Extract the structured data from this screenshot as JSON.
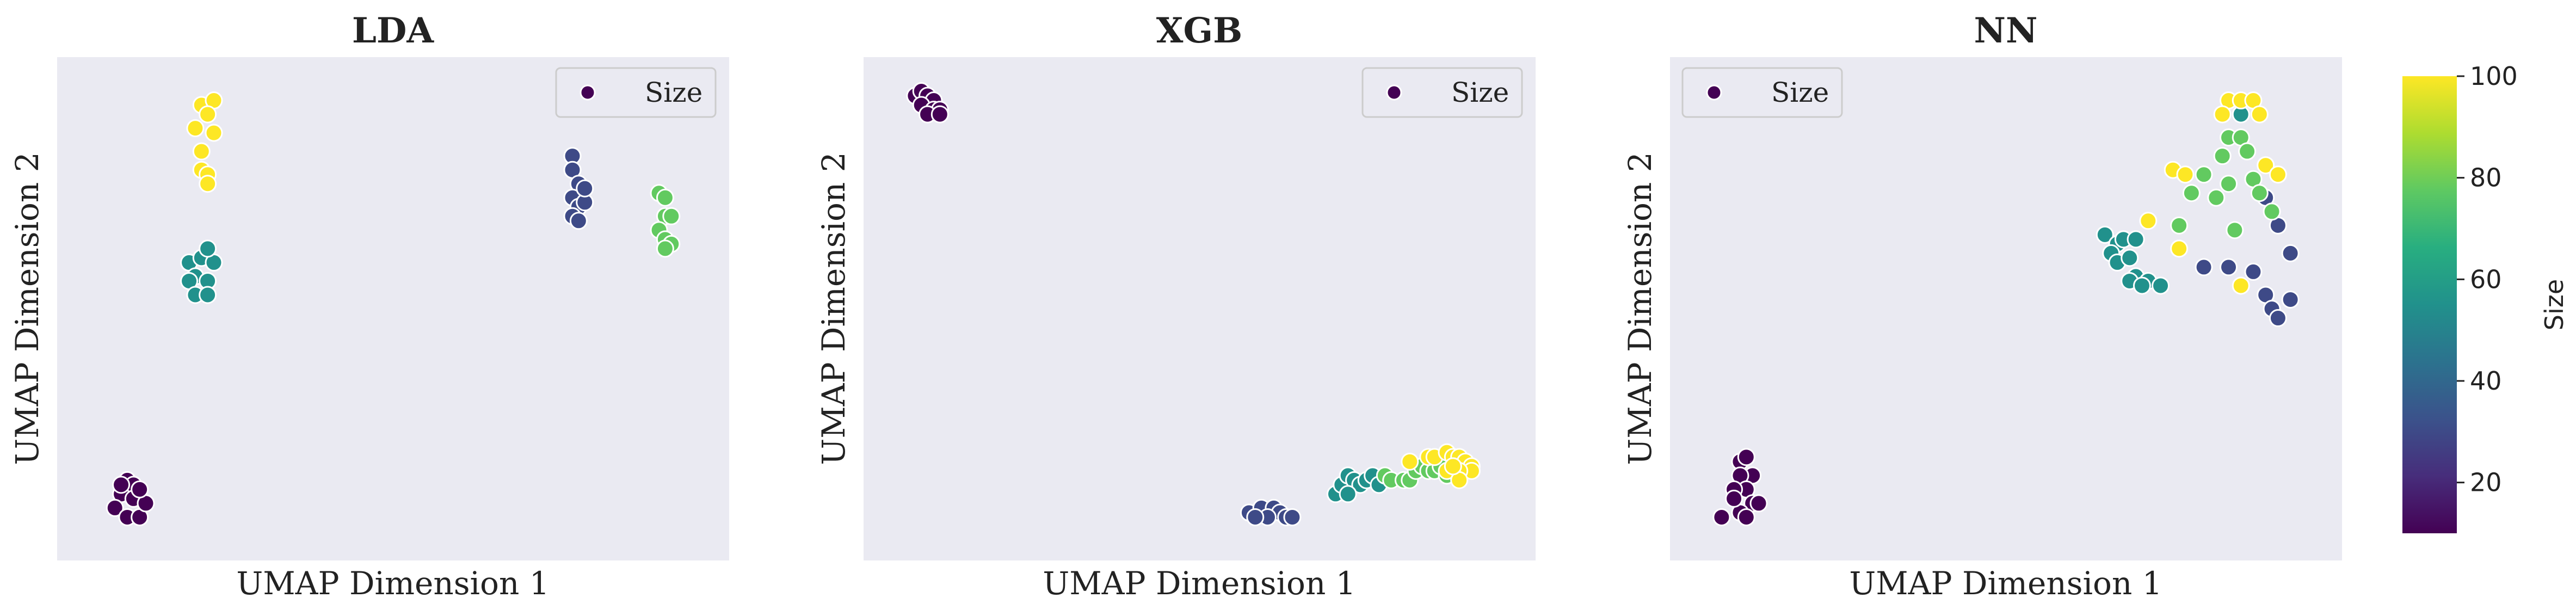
{
  "colorbar": {
    "label": "Size",
    "ticks": [
      20,
      40,
      60,
      80,
      100
    ],
    "range": [
      10,
      100
    ]
  },
  "colors": {
    "plot_bg": "#eaeaf2",
    "marker_edge": "#ffffff",
    "legend_marker": "#440154"
  },
  "chart_data": [
    {
      "type": "scatter",
      "title": "LDA",
      "xlabel": "UMAP Dimension 1",
      "ylabel": "UMAP Dimension 2",
      "legend": {
        "label": "Size",
        "position": "upper right"
      },
      "xlim": [
        0,
        100
      ],
      "ylim": [
        0,
        100
      ],
      "grid": false,
      "ticks_visible": false,
      "points": [
        {
          "x": 6,
          "y": 10,
          "c": 10
        },
        {
          "x": 7,
          "y": 13,
          "c": 10
        },
        {
          "x": 8,
          "y": 12,
          "c": 10
        },
        {
          "x": 5,
          "y": 7,
          "c": 10
        },
        {
          "x": 8,
          "y": 9,
          "c": 10
        },
        {
          "x": 7,
          "y": 5,
          "c": 10
        },
        {
          "x": 9,
          "y": 5,
          "c": 10
        },
        {
          "x": 10,
          "y": 8,
          "c": 10
        },
        {
          "x": 6,
          "y": 12,
          "c": 10
        },
        {
          "x": 9,
          "y": 11,
          "c": 10
        },
        {
          "x": 19,
          "y": 94,
          "c": 100
        },
        {
          "x": 21,
          "y": 95,
          "c": 100
        },
        {
          "x": 20,
          "y": 92,
          "c": 100
        },
        {
          "x": 18,
          "y": 89,
          "c": 100
        },
        {
          "x": 21,
          "y": 88,
          "c": 100
        },
        {
          "x": 19,
          "y": 84,
          "c": 100
        },
        {
          "x": 19,
          "y": 80,
          "c": 100
        },
        {
          "x": 20,
          "y": 79,
          "c": 100
        },
        {
          "x": 20,
          "y": 77,
          "c": 100
        },
        {
          "x": 17,
          "y": 60,
          "c": 55
        },
        {
          "x": 19,
          "y": 61,
          "c": 55
        },
        {
          "x": 21,
          "y": 60,
          "c": 55
        },
        {
          "x": 20,
          "y": 63,
          "c": 55
        },
        {
          "x": 18,
          "y": 57,
          "c": 55
        },
        {
          "x": 20,
          "y": 56,
          "c": 55
        },
        {
          "x": 17,
          "y": 56,
          "c": 55
        },
        {
          "x": 18,
          "y": 53,
          "c": 55
        },
        {
          "x": 20,
          "y": 53,
          "c": 55
        },
        {
          "x": 79,
          "y": 83,
          "c": 30
        },
        {
          "x": 79,
          "y": 80,
          "c": 30
        },
        {
          "x": 80,
          "y": 77,
          "c": 30
        },
        {
          "x": 79,
          "y": 74,
          "c": 30
        },
        {
          "x": 80,
          "y": 72,
          "c": 30
        },
        {
          "x": 79,
          "y": 70,
          "c": 30
        },
        {
          "x": 80,
          "y": 69,
          "c": 30
        },
        {
          "x": 81,
          "y": 73,
          "c": 30
        },
        {
          "x": 81,
          "y": 76,
          "c": 30
        },
        {
          "x": 93,
          "y": 75,
          "c": 78
        },
        {
          "x": 94,
          "y": 74,
          "c": 78
        },
        {
          "x": 94,
          "y": 70,
          "c": 78
        },
        {
          "x": 95,
          "y": 70,
          "c": 78
        },
        {
          "x": 93,
          "y": 67,
          "c": 78
        },
        {
          "x": 94,
          "y": 65,
          "c": 78
        },
        {
          "x": 95,
          "y": 64,
          "c": 78
        },
        {
          "x": 94,
          "y": 63,
          "c": 78
        }
      ]
    },
    {
      "type": "scatter",
      "title": "XGB",
      "xlabel": "UMAP Dimension 1",
      "ylabel": "UMAP Dimension 2",
      "legend": {
        "label": "Size",
        "position": "upper right"
      },
      "xlim": [
        0,
        100
      ],
      "ylim": [
        0,
        100
      ],
      "grid": false,
      "ticks_visible": false,
      "points": [
        {
          "x": 4,
          "y": 96,
          "c": 10
        },
        {
          "x": 5,
          "y": 97,
          "c": 10
        },
        {
          "x": 6,
          "y": 96,
          "c": 10
        },
        {
          "x": 7,
          "y": 95,
          "c": 10
        },
        {
          "x": 5,
          "y": 94,
          "c": 10
        },
        {
          "x": 7,
          "y": 93,
          "c": 10
        },
        {
          "x": 8,
          "y": 93,
          "c": 10
        },
        {
          "x": 6,
          "y": 92,
          "c": 10
        },
        {
          "x": 8,
          "y": 92,
          "c": 10
        },
        {
          "x": 58,
          "y": 6,
          "c": 30
        },
        {
          "x": 60,
          "y": 7,
          "c": 30
        },
        {
          "x": 62,
          "y": 7,
          "c": 30
        },
        {
          "x": 63,
          "y": 6,
          "c": 30
        },
        {
          "x": 64,
          "y": 5,
          "c": 30
        },
        {
          "x": 61,
          "y": 5,
          "c": 30
        },
        {
          "x": 59,
          "y": 5,
          "c": 30
        },
        {
          "x": 65,
          "y": 5,
          "c": 30
        },
        {
          "x": 72,
          "y": 10,
          "c": 55
        },
        {
          "x": 73,
          "y": 12,
          "c": 55
        },
        {
          "x": 74,
          "y": 14,
          "c": 55
        },
        {
          "x": 75,
          "y": 13,
          "c": 55
        },
        {
          "x": 76,
          "y": 12,
          "c": 55
        },
        {
          "x": 77,
          "y": 13,
          "c": 55
        },
        {
          "x": 78,
          "y": 14,
          "c": 55
        },
        {
          "x": 79,
          "y": 12,
          "c": 55
        },
        {
          "x": 74,
          "y": 10,
          "c": 55
        },
        {
          "x": 80,
          "y": 14,
          "c": 78
        },
        {
          "x": 81,
          "y": 13,
          "c": 78
        },
        {
          "x": 83,
          "y": 13,
          "c": 78
        },
        {
          "x": 84,
          "y": 13,
          "c": 78
        },
        {
          "x": 85,
          "y": 15,
          "c": 78
        },
        {
          "x": 86,
          "y": 16,
          "c": 78
        },
        {
          "x": 87,
          "y": 15,
          "c": 78
        },
        {
          "x": 88,
          "y": 15,
          "c": 78
        },
        {
          "x": 89,
          "y": 16,
          "c": 78
        },
        {
          "x": 90,
          "y": 14,
          "c": 78
        },
        {
          "x": 84,
          "y": 17,
          "c": 100
        },
        {
          "x": 87,
          "y": 18,
          "c": 100
        },
        {
          "x": 88,
          "y": 18,
          "c": 100
        },
        {
          "x": 90,
          "y": 19,
          "c": 100
        },
        {
          "x": 91,
          "y": 18,
          "c": 100
        },
        {
          "x": 92,
          "y": 18,
          "c": 100
        },
        {
          "x": 93,
          "y": 17,
          "c": 100
        },
        {
          "x": 94,
          "y": 16,
          "c": 100
        },
        {
          "x": 94,
          "y": 15,
          "c": 100
        },
        {
          "x": 92,
          "y": 15,
          "c": 100
        },
        {
          "x": 90,
          "y": 15,
          "c": 100
        },
        {
          "x": 92,
          "y": 13,
          "c": 100
        },
        {
          "x": 91,
          "y": 16,
          "c": 100
        }
      ]
    },
    {
      "type": "scatter",
      "title": "NN",
      "xlabel": "UMAP Dimension 1",
      "ylabel": "UMAP Dimension 2",
      "legend": {
        "label": "Size",
        "position": "upper left"
      },
      "xlim": [
        0,
        100
      ],
      "ylim": [
        0,
        100
      ],
      "grid": false,
      "ticks_visible": false,
      "points": [
        {
          "x": 7,
          "y": 17,
          "c": 10
        },
        {
          "x": 8,
          "y": 18,
          "c": 10
        },
        {
          "x": 9,
          "y": 14,
          "c": 10
        },
        {
          "x": 7,
          "y": 14,
          "c": 10
        },
        {
          "x": 8,
          "y": 11,
          "c": 10
        },
        {
          "x": 6,
          "y": 11,
          "c": 10
        },
        {
          "x": 9,
          "y": 8,
          "c": 10
        },
        {
          "x": 10,
          "y": 8,
          "c": 10
        },
        {
          "x": 7,
          "y": 6,
          "c": 10
        },
        {
          "x": 4,
          "y": 5,
          "c": 10
        },
        {
          "x": 8,
          "y": 5,
          "c": 10
        },
        {
          "x": 6,
          "y": 9,
          "c": 10
        },
        {
          "x": 66,
          "y": 66,
          "c": 55
        },
        {
          "x": 68,
          "y": 64,
          "c": 55
        },
        {
          "x": 69,
          "y": 65,
          "c": 55
        },
        {
          "x": 71,
          "y": 65,
          "c": 55
        },
        {
          "x": 67,
          "y": 62,
          "c": 55
        },
        {
          "x": 68,
          "y": 60,
          "c": 55
        },
        {
          "x": 70,
          "y": 61,
          "c": 55
        },
        {
          "x": 71,
          "y": 57,
          "c": 55
        },
        {
          "x": 70,
          "y": 56,
          "c": 55
        },
        {
          "x": 73,
          "y": 56,
          "c": 55
        },
        {
          "x": 75,
          "y": 55,
          "c": 55
        },
        {
          "x": 72,
          "y": 55,
          "c": 55
        },
        {
          "x": 88,
          "y": 92,
          "c": 55
        },
        {
          "x": 82,
          "y": 59,
          "c": 30
        },
        {
          "x": 86,
          "y": 59,
          "c": 30
        },
        {
          "x": 90,
          "y": 58,
          "c": 30
        },
        {
          "x": 92,
          "y": 53,
          "c": 30
        },
        {
          "x": 93,
          "y": 50,
          "c": 30
        },
        {
          "x": 94,
          "y": 48,
          "c": 30
        },
        {
          "x": 96,
          "y": 52,
          "c": 30
        },
        {
          "x": 94,
          "y": 68,
          "c": 30
        },
        {
          "x": 96,
          "y": 62,
          "c": 30
        },
        {
          "x": 92,
          "y": 74,
          "c": 30
        },
        {
          "x": 78,
          "y": 68,
          "c": 78
        },
        {
          "x": 80,
          "y": 75,
          "c": 78
        },
        {
          "x": 82,
          "y": 79,
          "c": 78
        },
        {
          "x": 84,
          "y": 74,
          "c": 78
        },
        {
          "x": 85,
          "y": 83,
          "c": 78
        },
        {
          "x": 86,
          "y": 87,
          "c": 78
        },
        {
          "x": 88,
          "y": 87,
          "c": 78
        },
        {
          "x": 89,
          "y": 84,
          "c": 78
        },
        {
          "x": 90,
          "y": 78,
          "c": 78
        },
        {
          "x": 91,
          "y": 75,
          "c": 78
        },
        {
          "x": 93,
          "y": 71,
          "c": 78
        },
        {
          "x": 86,
          "y": 77,
          "c": 78
        },
        {
          "x": 87,
          "y": 67,
          "c": 78
        },
        {
          "x": 86,
          "y": 95,
          "c": 100
        },
        {
          "x": 88,
          "y": 95,
          "c": 100
        },
        {
          "x": 90,
          "y": 95,
          "c": 100
        },
        {
          "x": 85,
          "y": 92,
          "c": 100
        },
        {
          "x": 91,
          "y": 92,
          "c": 100
        },
        {
          "x": 92,
          "y": 81,
          "c": 100
        },
        {
          "x": 94,
          "y": 79,
          "c": 100
        },
        {
          "x": 77,
          "y": 80,
          "c": 100
        },
        {
          "x": 73,
          "y": 69,
          "c": 100
        },
        {
          "x": 78,
          "y": 63,
          "c": 100
        },
        {
          "x": 88,
          "y": 55,
          "c": 100
        },
        {
          "x": 79,
          "y": 79,
          "c": 100
        }
      ]
    }
  ]
}
